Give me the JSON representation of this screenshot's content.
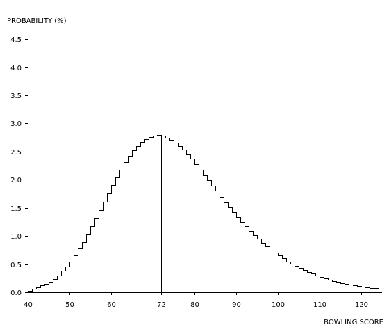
{
  "chart_data": {
    "type": "line",
    "title": "",
    "xlabel": "BOWLING SCORE",
    "ylabel": "PROBABILITY (%)",
    "xlim": [
      40,
      125
    ],
    "ylim": [
      0,
      4.6
    ],
    "xticks": [
      40,
      50,
      60,
      72,
      80,
      90,
      100,
      110,
      120
    ],
    "yticks": [
      0.0,
      0.5,
      1.0,
      1.5,
      2.0,
      2.5,
      3.0,
      3.5,
      4.0,
      4.5
    ],
    "grid": false,
    "legend": "none",
    "step": true,
    "marker_line_x": 72,
    "series": [
      {
        "x": [
          40,
          41,
          42,
          43,
          44,
          45,
          46,
          47,
          48,
          49,
          50,
          51,
          52,
          53,
          54,
          55,
          56,
          57,
          58,
          59,
          60,
          61,
          62,
          63,
          64,
          65,
          66,
          67,
          68,
          69,
          70,
          71,
          72,
          73,
          74,
          75,
          76,
          77,
          78,
          79,
          80,
          81,
          82,
          83,
          84,
          85,
          86,
          87,
          88,
          89,
          90,
          91,
          92,
          93,
          94,
          95,
          96,
          97,
          98,
          99,
          100,
          101,
          102,
          103,
          104,
          105,
          106,
          107,
          108,
          109,
          110,
          111,
          112,
          113,
          114,
          115,
          116,
          117,
          118,
          119,
          120,
          121,
          122,
          123,
          124
        ],
        "values": [
          0.03,
          0.06,
          0.09,
          0.12,
          0.15,
          0.19,
          0.24,
          0.3,
          0.38,
          0.46,
          0.55,
          0.66,
          0.78,
          0.89,
          1.03,
          1.17,
          1.31,
          1.46,
          1.61,
          1.76,
          1.91,
          2.04,
          2.18,
          2.31,
          2.42,
          2.52,
          2.6,
          2.67,
          2.72,
          2.76,
          2.78,
          2.79,
          2.78,
          2.75,
          2.71,
          2.66,
          2.6,
          2.53,
          2.45,
          2.37,
          2.28,
          2.18,
          2.08,
          1.99,
          1.89,
          1.8,
          1.7,
          1.6,
          1.51,
          1.42,
          1.34,
          1.25,
          1.17,
          1.09,
          1.02,
          0.95,
          0.88,
          0.82,
          0.76,
          0.7,
          0.65,
          0.6,
          0.55,
          0.51,
          0.47,
          0.43,
          0.39,
          0.36,
          0.33,
          0.3,
          0.27,
          0.25,
          0.22,
          0.2,
          0.18,
          0.16,
          0.15,
          0.13,
          0.12,
          0.11,
          0.1,
          0.09,
          0.08,
          0.07,
          0.06
        ]
      }
    ]
  }
}
